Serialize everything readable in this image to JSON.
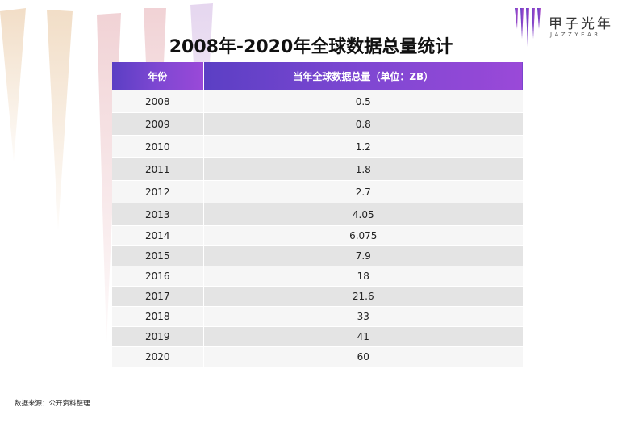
{
  "title": "2008年-2020年全球数据总量统计",
  "logo": {
    "name": "甲子光年",
    "sub": "JAZZYEAR"
  },
  "table": {
    "headers": [
      "年份",
      "当年全球数据总量（单位：ZB）"
    ],
    "rows": [
      {
        "year": "2008",
        "value": "0.5"
      },
      {
        "year": "2009",
        "value": "0.8"
      },
      {
        "year": "2010",
        "value": "1.2"
      },
      {
        "year": "2011",
        "value": "1.8"
      },
      {
        "year": "2012",
        "value": "2.7"
      },
      {
        "year": "2013",
        "value": "4.05"
      },
      {
        "year": "2014",
        "value": "6.075"
      },
      {
        "year": "2015",
        "value": "7.9"
      },
      {
        "year": "2016",
        "value": "18"
      },
      {
        "year": "2017",
        "value": "21.6"
      },
      {
        "year": "2018",
        "value": "33"
      },
      {
        "year": "2019",
        "value": "41"
      },
      {
        "year": "2020",
        "value": "60"
      }
    ]
  },
  "source": "数据来源：公开资料整理",
  "colors": {
    "header_start": "#5b3fc4",
    "header_end": "#9a49d8",
    "row_light": "#f6f6f6",
    "row_dark": "#e4e4e4"
  }
}
